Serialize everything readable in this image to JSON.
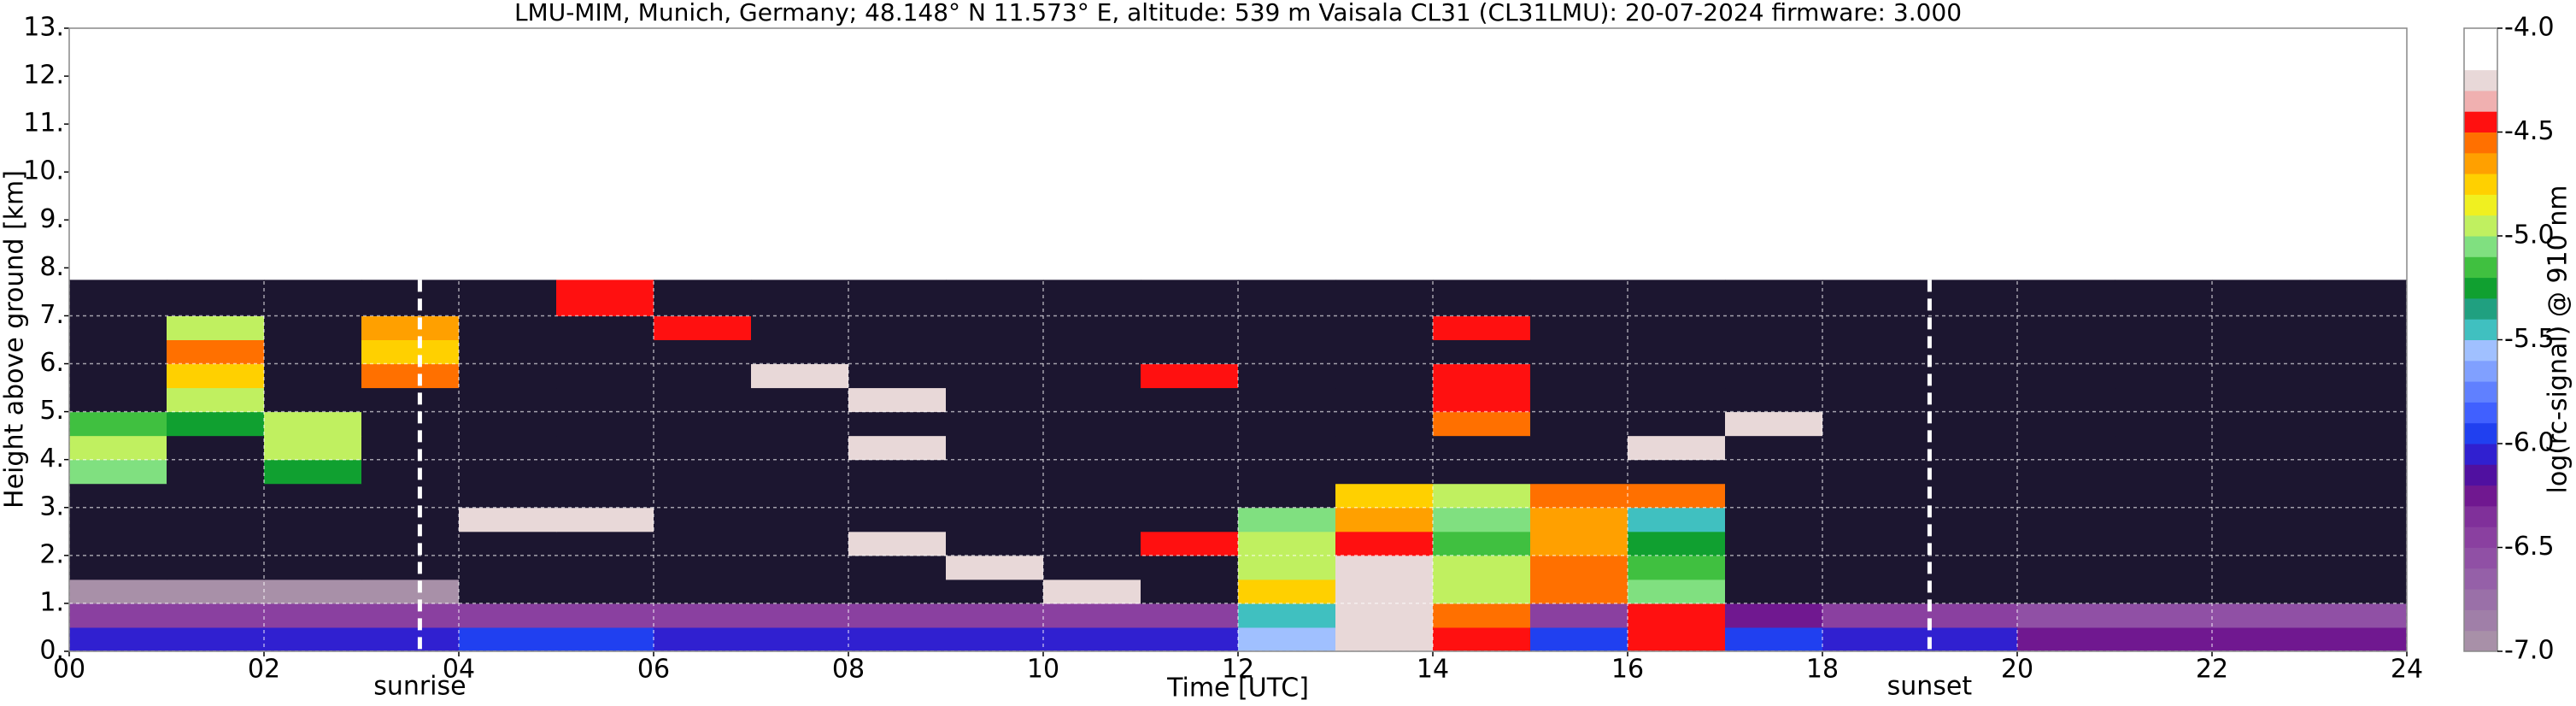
{
  "chart_data": {
    "type": "heatmap",
    "title": "LMU-MIM, Munich, Germany; 48.148° N 11.573° E, altitude: 539 m    Vaisala CL31 (CL31LMU): 20-07-2024    firmware: 3.000",
    "xlabel": "Time [UTC]",
    "ylabel": "Height above ground [km]",
    "colorbar_label": "log(rc-signal) @ 910 nm",
    "xlim": [
      0,
      24
    ],
    "ylim": [
      0,
      13
    ],
    "xticks": [
      {
        "value": 0,
        "label": "00"
      },
      {
        "value": 2,
        "label": "02"
      },
      {
        "value": 4,
        "label": "04"
      },
      {
        "value": 6,
        "label": "06"
      },
      {
        "value": 8,
        "label": "08"
      },
      10,
      12,
      14,
      16,
      18,
      20,
      22,
      24
    ],
    "yticks": [
      {
        "value": 0,
        "label": "0."
      },
      {
        "value": 1,
        "label": "1."
      },
      {
        "value": 2,
        "label": "2."
      },
      {
        "value": 3,
        "label": "3."
      },
      {
        "value": 4,
        "label": "4."
      },
      {
        "value": 5,
        "label": "5."
      },
      {
        "value": 6,
        "label": "6."
      },
      {
        "value": 7,
        "label": "7."
      },
      {
        "value": 8,
        "label": "8."
      },
      {
        "value": 9,
        "label": "9."
      },
      {
        "value": 10,
        "label": "10."
      },
      {
        "value": 11,
        "label": "11."
      },
      {
        "value": 12,
        "label": "12."
      },
      {
        "value": 13,
        "label": "13."
      }
    ],
    "grid": true,
    "clim": [
      -7.0,
      -4.0
    ],
    "cticks": [
      {
        "value": -7,
        "label": "-7.0"
      },
      {
        "value": -6.5,
        "label": "-6.5"
      },
      {
        "value": -6,
        "label": "-6.0"
      },
      {
        "value": -5.5,
        "label": "-5.5"
      },
      {
        "value": -5,
        "label": "-5.0"
      },
      {
        "value": -4.5,
        "label": "-4.5"
      },
      {
        "value": -4,
        "label": "-4.0"
      }
    ],
    "colors": [
      "#a890a8",
      "#a07fa8",
      "#9a70a8",
      "#9560a8",
      "#9050a5",
      "#8a40a0",
      "#80309a",
      "#701890",
      "#5010a0",
      "#3020d0",
      "#2040f0",
      "#4060ff",
      "#6080ff",
      "#80a0ff",
      "#a0c0ff",
      "#40c0c0",
      "#20a080",
      "#10a030",
      "#40c040",
      "#80e080",
      "#c0f060",
      "#f0f020",
      "#ffd000",
      "#ffa000",
      "#ff7000",
      "#ff1010",
      "#f0b0b0",
      "#e8d8d8",
      "#ffffff",
      "#ffffff"
    ],
    "under_color": "#1c1630",
    "xbins": [
      0,
      1,
      2,
      3,
      4,
      5,
      6,
      7,
      8,
      9,
      10,
      11,
      12,
      13,
      14,
      15,
      16,
      17,
      18,
      19,
      20,
      21,
      22,
      23,
      24
    ],
    "ybins": [
      0,
      0.5,
      1,
      1.5,
      2,
      2.5,
      3,
      3.5,
      4,
      4.5,
      5,
      5.5,
      6,
      6.5,
      7,
      7.75
    ],
    "z": [
      [
        -6.1,
        -6.1,
        -6.1,
        -6.1,
        -6.0,
        -6.0,
        -6.1,
        -6.1,
        -6.1,
        -6.1,
        -6.1,
        -6.1,
        -5.6,
        -4.2,
        -4.5,
        -6.0,
        -4.5,
        -6.0,
        -6.1,
        -6.1,
        -6.2,
        -6.2,
        -6.2,
        -6.2
      ],
      [
        -6.5,
        -6.5,
        -6.5,
        -6.5,
        -6.5,
        -6.5,
        -6.5,
        -6.5,
        -6.5,
        -6.5,
        -6.5,
        -6.5,
        -5.4,
        -4.2,
        -4.6,
        -6.4,
        -4.4,
        -6.3,
        -6.5,
        -6.5,
        -6.6,
        -6.6,
        -6.6,
        -6.6
      ],
      [
        -6.9,
        -6.9,
        -6.9,
        -6.9,
        -7.2,
        -7.2,
        -7.2,
        -7.2,
        -7.2,
        -7.2,
        -4.3,
        -7.2,
        -4.8,
        -4.2,
        -5.0,
        -4.6,
        -5.1,
        -7.2,
        -7.2,
        -7.2,
        -7.2,
        -7.2,
        -7.2,
        -7.2
      ],
      [
        -7.2,
        -7.2,
        -7.2,
        -7.2,
        -7.2,
        -7.2,
        -7.2,
        -7.2,
        -7.2,
        -4.3,
        -7.2,
        -7.2,
        -4.9,
        -4.3,
        -5.0,
        -4.6,
        -5.2,
        -7.2,
        -7.2,
        -7.2,
        -7.2,
        -7.2,
        -7.2,
        -7.2
      ],
      [
        -7.2,
        -7.2,
        -7.2,
        -7.2,
        -7.2,
        -7.2,
        -7.2,
        -7.2,
        -4.3,
        -7.2,
        -7.2,
        -4.4,
        -5.0,
        -4.5,
        -5.2,
        -4.7,
        -5.3,
        -7.2,
        -7.2,
        -7.2,
        -7.2,
        -7.2,
        -7.2,
        -7.2
      ],
      [
        -7.2,
        -7.2,
        -7.2,
        -7.2,
        -4.3,
        -4.3,
        -7.2,
        -7.2,
        -7.2,
        -7.2,
        -7.2,
        -7.2,
        -5.1,
        -4.7,
        -5.1,
        -4.7,
        -5.4,
        -7.2,
        -7.2,
        -7.2,
        -7.2,
        -7.2,
        -7.2,
        -7.2
      ],
      [
        -7.2,
        -7.2,
        -7.2,
        -7.2,
        -7.2,
        -7.2,
        -7.2,
        -7.2,
        -7.2,
        -7.2,
        -7.2,
        -7.2,
        -7.2,
        -4.8,
        -5.0,
        -4.6,
        -4.6,
        -7.2,
        -7.2,
        -7.2,
        -7.2,
        -7.2,
        -7.2,
        -7.2
      ],
      [
        -5.1,
        -7.2,
        -5.3,
        -7.2,
        -7.2,
        -7.2,
        -7.2,
        -7.2,
        -7.2,
        -7.2,
        -7.2,
        -7.2,
        -7.2,
        -7.2,
        -7.2,
        -7.2,
        -7.2,
        -7.2,
        -7.2,
        -7.2,
        -7.2,
        -7.2,
        -7.2,
        -7.2
      ],
      [
        -5.0,
        -7.2,
        -5.0,
        -7.2,
        -7.2,
        -7.2,
        -7.2,
        -7.2,
        -4.3,
        -7.2,
        -7.2,
        -7.2,
        -7.2,
        -7.2,
        -7.2,
        -7.2,
        -4.3,
        -7.2,
        -7.2,
        -7.2,
        -7.2,
        -7.2,
        -7.2,
        -7.2
      ],
      [
        -5.2,
        -5.3,
        -4.9,
        -7.2,
        -7.2,
        -7.2,
        -7.2,
        -7.2,
        -7.2,
        -7.2,
        -7.2,
        -7.2,
        -7.2,
        -7.2,
        -4.6,
        -7.2,
        -7.2,
        -4.3,
        -7.2,
        -7.2,
        -7.2,
        -7.2,
        -7.2,
        -7.2
      ],
      [
        -7.2,
        -4.9,
        -7.2,
        -7.2,
        -7.2,
        -7.2,
        -7.2,
        -7.2,
        -4.3,
        -7.2,
        -7.2,
        -7.2,
        -7.2,
        -7.2,
        -4.5,
        -7.2,
        -7.2,
        -7.2,
        -7.2,
        -7.2,
        -7.2,
        -7.2,
        -7.2,
        -7.2
      ],
      [
        -7.2,
        -4.8,
        -7.2,
        -4.6,
        -7.2,
        -7.2,
        -7.2,
        -4.3,
        -7.2,
        -7.2,
        -7.2,
        -4.4,
        -7.2,
        -7.2,
        -4.5,
        -7.2,
        -7.2,
        -7.2,
        -7.2,
        -7.2,
        -7.2,
        -7.2,
        -7.2,
        -7.2
      ],
      [
        -7.2,
        -4.6,
        -7.2,
        -4.8,
        -7.2,
        -7.2,
        -7.2,
        -7.2,
        -7.2,
        -7.2,
        -7.2,
        -7.2,
        -7.2,
        -7.2,
        -7.2,
        -7.2,
        -7.2,
        -7.2,
        -7.2,
        -7.2,
        -7.2,
        -7.2,
        -7.2,
        -7.2
      ],
      [
        -7.2,
        -5.0,
        -7.2,
        -4.7,
        -7.2,
        -7.2,
        -4.4,
        -7.2,
        -7.2,
        -7.2,
        -7.2,
        -7.2,
        -7.2,
        -7.2,
        -4.4,
        -7.2,
        -7.2,
        -7.2,
        -7.2,
        -7.2,
        -7.2,
        -7.2,
        -7.2,
        -7.2
      ],
      [
        -7.2,
        -7.2,
        -7.2,
        -7.2,
        -7.2,
        -4.4,
        -7.2,
        -7.2,
        -7.2,
        -7.2,
        -7.2,
        -7.2,
        -7.2,
        -7.2,
        -7.2,
        -7.2,
        -7.2,
        -7.2,
        -7.2,
        -7.2,
        -7.2,
        -7.2,
        -7.2,
        -7.2
      ]
    ],
    "annotations": [
      {
        "text": "sunrise",
        "x": 3.6
      },
      {
        "text": "sunset",
        "x": 19.1
      }
    ]
  }
}
